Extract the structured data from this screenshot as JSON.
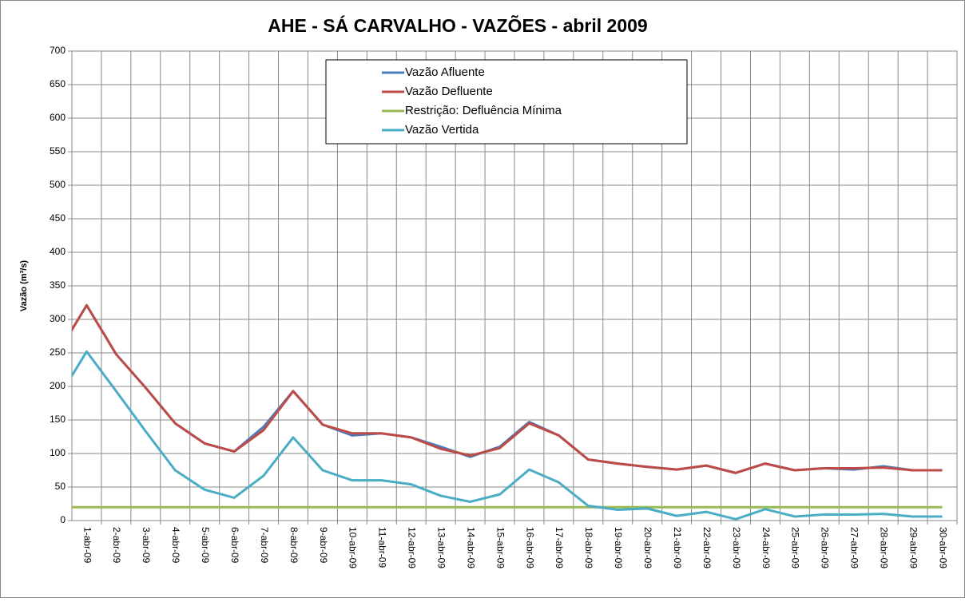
{
  "chart_data": {
    "type": "line",
    "title": "AHE - SÁ CARVALHO - VAZÕES - abril 2009",
    "y_label": "Vazão (m³/s)",
    "categories": [
      null,
      "1-abr-09",
      "2-abr-09",
      "3-abr-09",
      "4-abr-09",
      "5-abr-09",
      "6-abr-09",
      "7-abr-09",
      "8-abr-09",
      "9-abr-09",
      "10-abr-09",
      "11-abr-09",
      "12-abr-09",
      "13-abr-09",
      "14-abr-09",
      "15-abr-09",
      "16-abr-09",
      "17-abr-09",
      "18-abr-09",
      "19-abr-09",
      "20-abr-09",
      "21-abr-09",
      "22-abr-09",
      "23-abr-09",
      "24-abr-09",
      "25-abr-09",
      "26-abr-09",
      "27-abr-09",
      "28-abr-09",
      "29-abr-09",
      "30-abr-09"
    ],
    "series": [
      {
        "name": "Vazão Afluente",
        "color": "#4a7ebb",
        "values": [
          248,
          321,
          248,
          198,
          145,
          115,
          103,
          140,
          193,
          143,
          127,
          130,
          124,
          110,
          95,
          110,
          147,
          127,
          91,
          85,
          80,
          76,
          82,
          71,
          85,
          75,
          78,
          76,
          81,
          75,
          75
        ]
      },
      {
        "name": "Vazão Defluente",
        "color": "#be4b48",
        "values": [
          248,
          321,
          248,
          198,
          145,
          115,
          103,
          135,
          193,
          143,
          130,
          130,
          124,
          107,
          97,
          108,
          145,
          127,
          91,
          85,
          80,
          76,
          82,
          71,
          85,
          75,
          78,
          78,
          79,
          75,
          75
        ]
      },
      {
        "name": "Restrição: Defluência Mínima",
        "color": "#98b954",
        "values": [
          20,
          20,
          20,
          20,
          20,
          20,
          20,
          20,
          20,
          20,
          20,
          20,
          20,
          20,
          20,
          20,
          20,
          20,
          20,
          20,
          20,
          20,
          20,
          20,
          20,
          20,
          20,
          20,
          20,
          20,
          20
        ]
      },
      {
        "name": "Vazão Vertida",
        "color": "#4bacc6",
        "values": [
          180,
          252,
          193,
          133,
          75,
          46,
          34,
          67,
          124,
          75,
          60,
          60,
          54,
          37,
          28,
          39,
          76,
          57,
          22,
          16,
          18,
          7,
          13,
          2,
          17,
          6,
          9,
          9,
          10,
          6,
          6
        ]
      }
    ],
    "ylim": [
      0,
      700
    ],
    "yticks": [
      0,
      50,
      100,
      150,
      200,
      250,
      300,
      350,
      400,
      450,
      500,
      550,
      600,
      650,
      700
    ],
    "grid": true,
    "legend": "top"
  }
}
